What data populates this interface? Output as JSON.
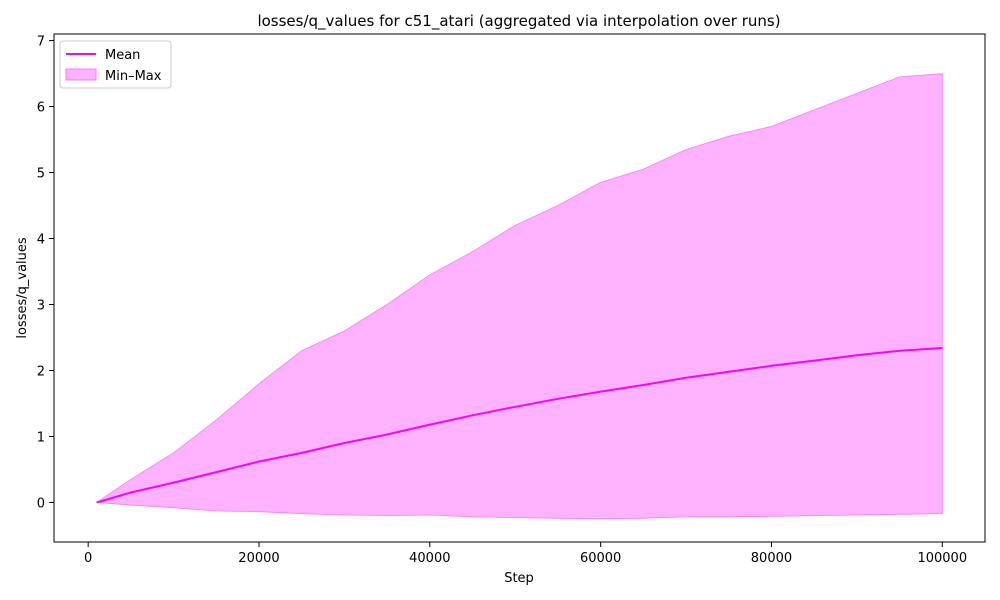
{
  "chart_data": {
    "type": "line",
    "title": "losses/q_values for c51_atari (aggregated via interpolation over runs)",
    "xlabel": "Step",
    "ylabel": "losses/q_values",
    "xlim": [
      -4000,
      105000
    ],
    "ylim": [
      -0.6,
      7.1
    ],
    "x_ticks": [
      0,
      20000,
      40000,
      60000,
      80000,
      100000
    ],
    "y_ticks": [
      0,
      1,
      2,
      3,
      4,
      5,
      6,
      7
    ],
    "grid": false,
    "legend": {
      "placement": "top-left",
      "entries": [
        "Mean",
        "Min–Max"
      ]
    },
    "colors": {
      "mean": "#ff00ff",
      "band_fill": "#ffb3ff",
      "band_edge": "#ff77ff"
    },
    "x": [
      1000,
      5000,
      10000,
      15000,
      20000,
      25000,
      30000,
      35000,
      40000,
      45000,
      50000,
      55000,
      60000,
      65000,
      70000,
      75000,
      80000,
      85000,
      90000,
      95000,
      100000
    ],
    "series": [
      {
        "name": "Mean",
        "kind": "line",
        "values": [
          0.0,
          0.15,
          0.3,
          0.46,
          0.62,
          0.75,
          0.9,
          1.03,
          1.18,
          1.32,
          1.45,
          1.57,
          1.68,
          1.78,
          1.89,
          1.98,
          2.07,
          2.15,
          2.23,
          2.3,
          2.34
        ]
      },
      {
        "name": "Min–Max",
        "kind": "band",
        "min": [
          0.0,
          -0.04,
          -0.08,
          -0.13,
          -0.14,
          -0.17,
          -0.19,
          -0.2,
          -0.19,
          -0.22,
          -0.23,
          -0.24,
          -0.25,
          -0.24,
          -0.22,
          -0.22,
          -0.21,
          -0.2,
          -0.19,
          -0.18,
          -0.17
        ],
        "max": [
          0.0,
          0.35,
          0.75,
          1.25,
          1.8,
          2.3,
          2.6,
          3.0,
          3.45,
          3.8,
          4.2,
          4.5,
          4.85,
          5.05,
          5.35,
          5.55,
          5.7,
          5.95,
          6.2,
          6.45,
          6.5
        ]
      }
    ]
  }
}
